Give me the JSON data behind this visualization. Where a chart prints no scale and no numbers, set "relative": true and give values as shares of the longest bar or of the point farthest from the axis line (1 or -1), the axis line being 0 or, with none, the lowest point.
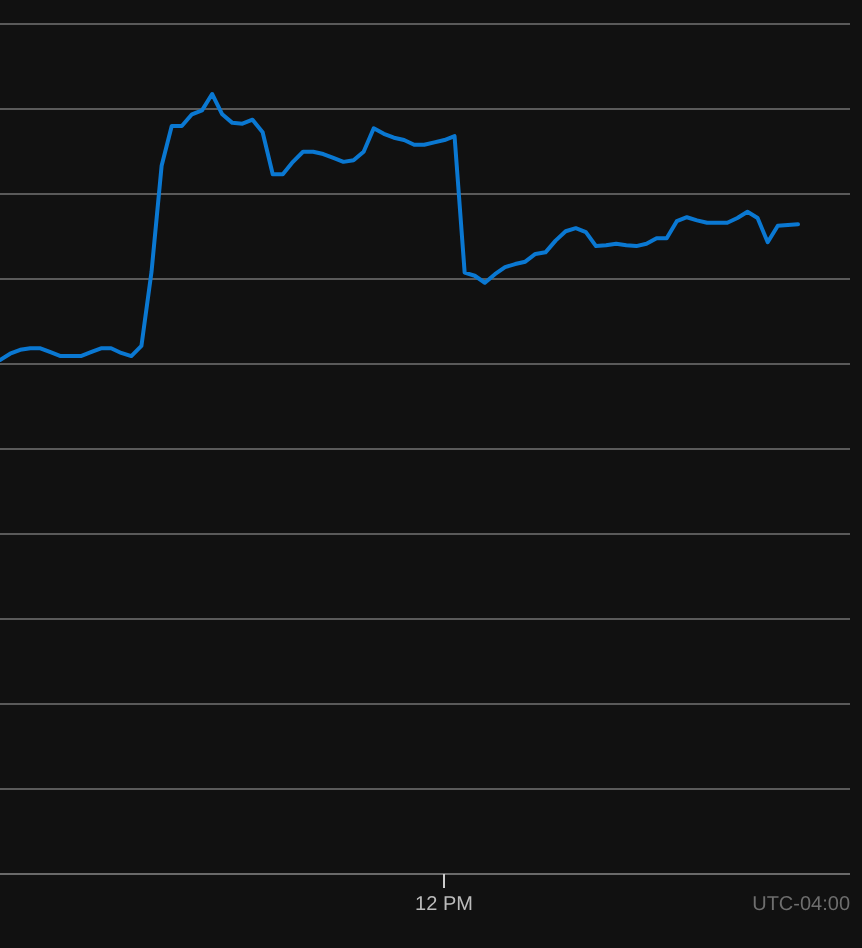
{
  "chart_data": {
    "type": "line",
    "relative": true,
    "grid": "y",
    "categories": [
      null,
      null,
      null,
      null,
      null,
      null,
      null,
      null,
      null,
      null,
      null,
      null,
      null,
      null,
      null,
      null,
      null,
      null,
      null,
      null,
      null,
      null,
      null,
      null,
      null,
      null,
      null,
      null,
      null,
      null,
      null,
      null,
      null,
      null,
      null,
      null,
      null,
      null,
      null,
      null,
      null,
      null,
      null,
      null,
      null,
      null,
      null,
      null,
      null,
      null,
      null,
      null,
      null,
      null,
      null,
      null,
      null,
      null,
      null,
      null,
      null,
      null,
      null,
      null,
      null,
      null,
      null,
      null,
      null,
      null,
      null,
      null,
      null,
      null,
      null,
      null,
      null,
      null,
      null,
      null
    ],
    "series": [
      {
        "color": "#0a78d2",
        "values": [
          0.659,
          0.667,
          0.672,
          0.674,
          0.674,
          0.669,
          0.664,
          0.664,
          0.664,
          0.669,
          0.674,
          0.674,
          0.668,
          0.664,
          0.677,
          0.772,
          0.908,
          0.959,
          0.959,
          0.974,
          0.979,
          1,
          0.974,
          0.963,
          0.962,
          0.967,
          0.951,
          0.897,
          0.897,
          0.913,
          0.926,
          0.926,
          0.923,
          0.918,
          0.913,
          0.915,
          0.926,
          0.956,
          0.949,
          0.944,
          0.941,
          0.935,
          0.935,
          0.938,
          0.941,
          0.946,
          0.771,
          0.767,
          0.758,
          0.769,
          0.778,
          0.782,
          0.785,
          0.795,
          0.797,
          0.812,
          0.824,
          0.828,
          0.823,
          0.805,
          0.806,
          0.808,
          0.806,
          0.805,
          0.808,
          0.815,
          0.815,
          0.837,
          0.842,
          0.838,
          0.835,
          0.835,
          0.835,
          0.841,
          0.849,
          0.841,
          0.81,
          0.831,
          0.832,
          0.833
        ]
      }
    ],
    "annotations": [
      "12 PM",
      "UTC-04:00"
    ]
  }
}
